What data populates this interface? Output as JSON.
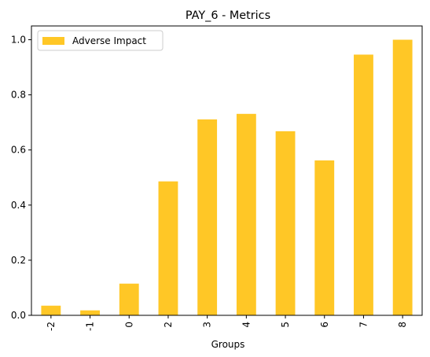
{
  "chart_data": {
    "type": "bar",
    "title": "PAY_6 - Metrics",
    "xlabel": "Groups",
    "ylabel": "",
    "categories": [
      "-2",
      "-1",
      "0",
      "2",
      "3",
      "4",
      "5",
      "6",
      "7",
      "8"
    ],
    "series": [
      {
        "name": "Adverse Impact",
        "color": "#FFC726",
        "values": [
          0.035,
          0.018,
          0.115,
          0.486,
          0.711,
          0.731,
          0.668,
          0.562,
          0.946,
          1.0
        ]
      }
    ],
    "ylim": [
      0,
      1.05
    ],
    "yticks": [
      0.0,
      0.2,
      0.4,
      0.6,
      0.8,
      1.0
    ],
    "ytick_labels": [
      "0.0",
      "0.2",
      "0.4",
      "0.6",
      "0.8",
      "1.0"
    ],
    "grid": false,
    "legend_position": "top-left",
    "xtick_rotation": 90
  }
}
